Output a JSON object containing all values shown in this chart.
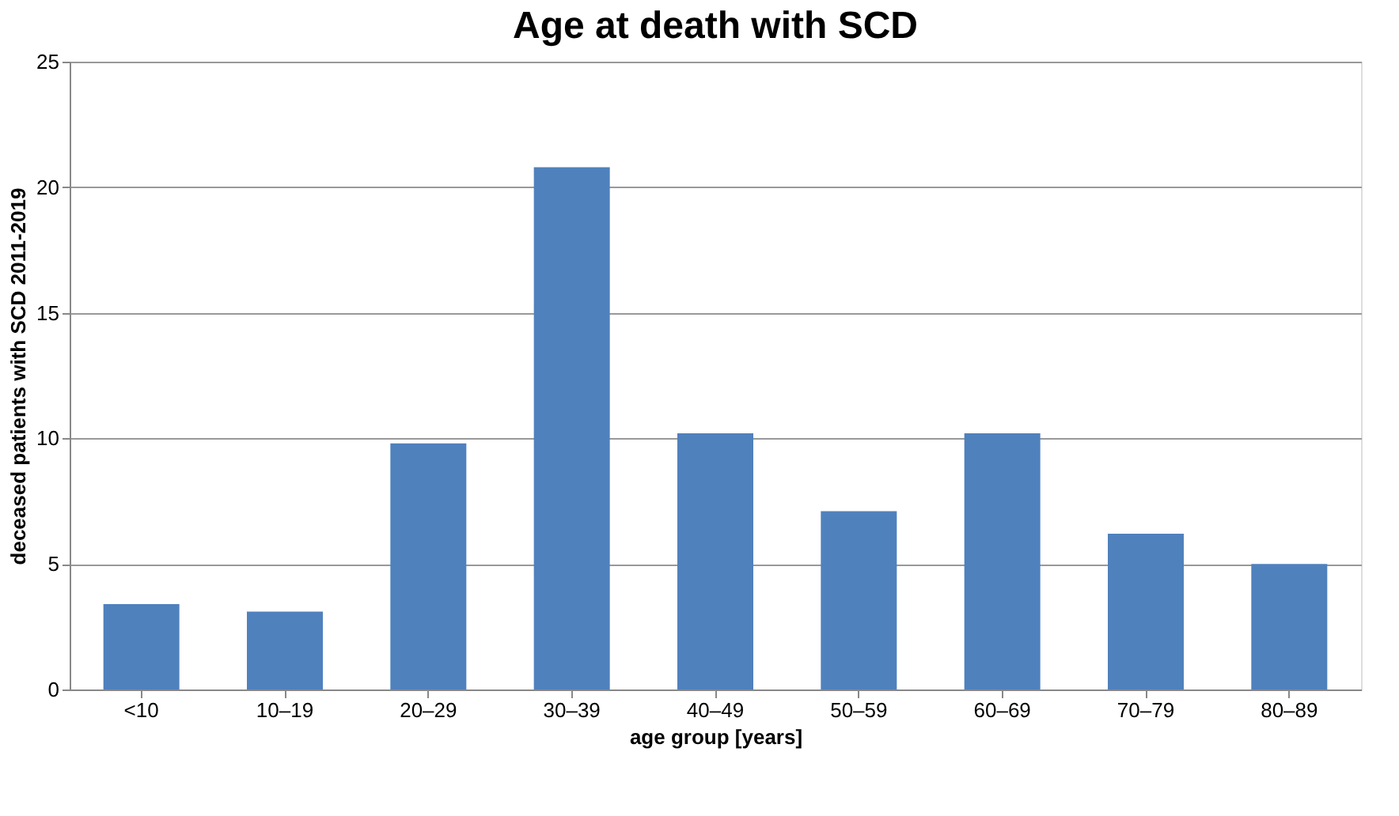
{
  "chart_data": {
    "type": "bar",
    "title": "Age at death with SCD",
    "xlabel": "age group [years]",
    "ylabel": "deceased patients with SCD 2011-2019",
    "categories": [
      "<10",
      "10–19",
      "20–29",
      "30–39",
      "40–49",
      "50–59",
      "60–69",
      "70–79",
      "80–89"
    ],
    "values": [
      3.4,
      3.1,
      9.8,
      20.8,
      10.2,
      7.1,
      10.2,
      6.2,
      5.0
    ],
    "color": "#4f81bd",
    "ylim": [
      0,
      25
    ],
    "yticks": [
      0,
      5,
      10,
      15,
      20,
      25
    ],
    "grid": "y"
  }
}
